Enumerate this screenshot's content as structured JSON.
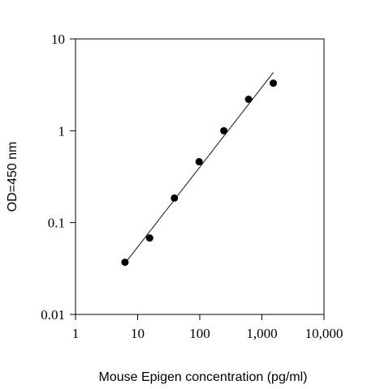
{
  "chart_data": {
    "type": "scatter",
    "xlabel": "Mouse Epigen concentration (pg/ml)",
    "ylabel": "OD=450 nm",
    "xscale": "log",
    "yscale": "log",
    "xlim": [
      1,
      10000
    ],
    "ylim": [
      0.01,
      10
    ],
    "x_ticks": [
      1,
      10,
      100,
      1000,
      10000
    ],
    "x_tick_labels": [
      "1",
      "10",
      "100",
      "1,000",
      "10,000"
    ],
    "y_ticks": [
      0.01,
      0.1,
      1,
      10
    ],
    "y_tick_labels": [
      "0.01",
      "0.1",
      "1",
      "10"
    ],
    "grid": false,
    "points": [
      {
        "x": 6.25,
        "y": 0.037
      },
      {
        "x": 15.6,
        "y": 0.068
      },
      {
        "x": 39,
        "y": 0.185
      },
      {
        "x": 97.6,
        "y": 0.46
      },
      {
        "x": 244,
        "y": 1.0
      },
      {
        "x": 610,
        "y": 2.2
      },
      {
        "x": 1525,
        "y": 3.3
      }
    ],
    "fit_line": [
      {
        "x": 6.25,
        "y": 0.036
      },
      {
        "x": 1525,
        "y": 4.3
      }
    ],
    "colors": {
      "points": "#000000",
      "line": "#000000",
      "axes": "#000000"
    }
  }
}
